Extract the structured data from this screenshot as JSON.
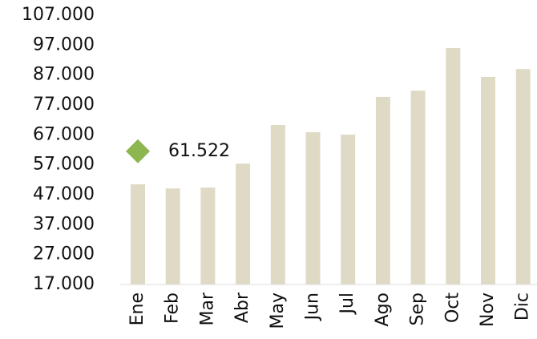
{
  "chart_data": {
    "type": "bar",
    "categories": [
      "Ene",
      "Feb",
      "Mar",
      "Abr",
      "May",
      "Jun",
      "Jul",
      "Ago",
      "Sep",
      "Oct",
      "Nov",
      "Dic"
    ],
    "values": [
      50500,
      49100,
      49400,
      57400,
      70300,
      67900,
      67100,
      79700,
      81800,
      96000,
      86400,
      89000
    ],
    "color": "#dfdac5",
    "ylim": [
      17000,
      107000
    ],
    "yticks": [
      {
        "value": 17000,
        "label": "17.000"
      },
      {
        "value": 27000,
        "label": "27.000"
      },
      {
        "value": 37000,
        "label": "37.000"
      },
      {
        "value": 47000,
        "label": "47.000"
      },
      {
        "value": 57000,
        "label": "57.000"
      },
      {
        "value": 67000,
        "label": "67.000"
      },
      {
        "value": 77000,
        "label": "77.000"
      },
      {
        "value": 87000,
        "label": "87.000"
      },
      {
        "value": 97000,
        "label": "97.000"
      },
      {
        "value": 107000,
        "label": "107.000"
      }
    ],
    "grid": false,
    "marker": {
      "value": 61522,
      "label": "61.522",
      "color": "#8db650"
    }
  }
}
